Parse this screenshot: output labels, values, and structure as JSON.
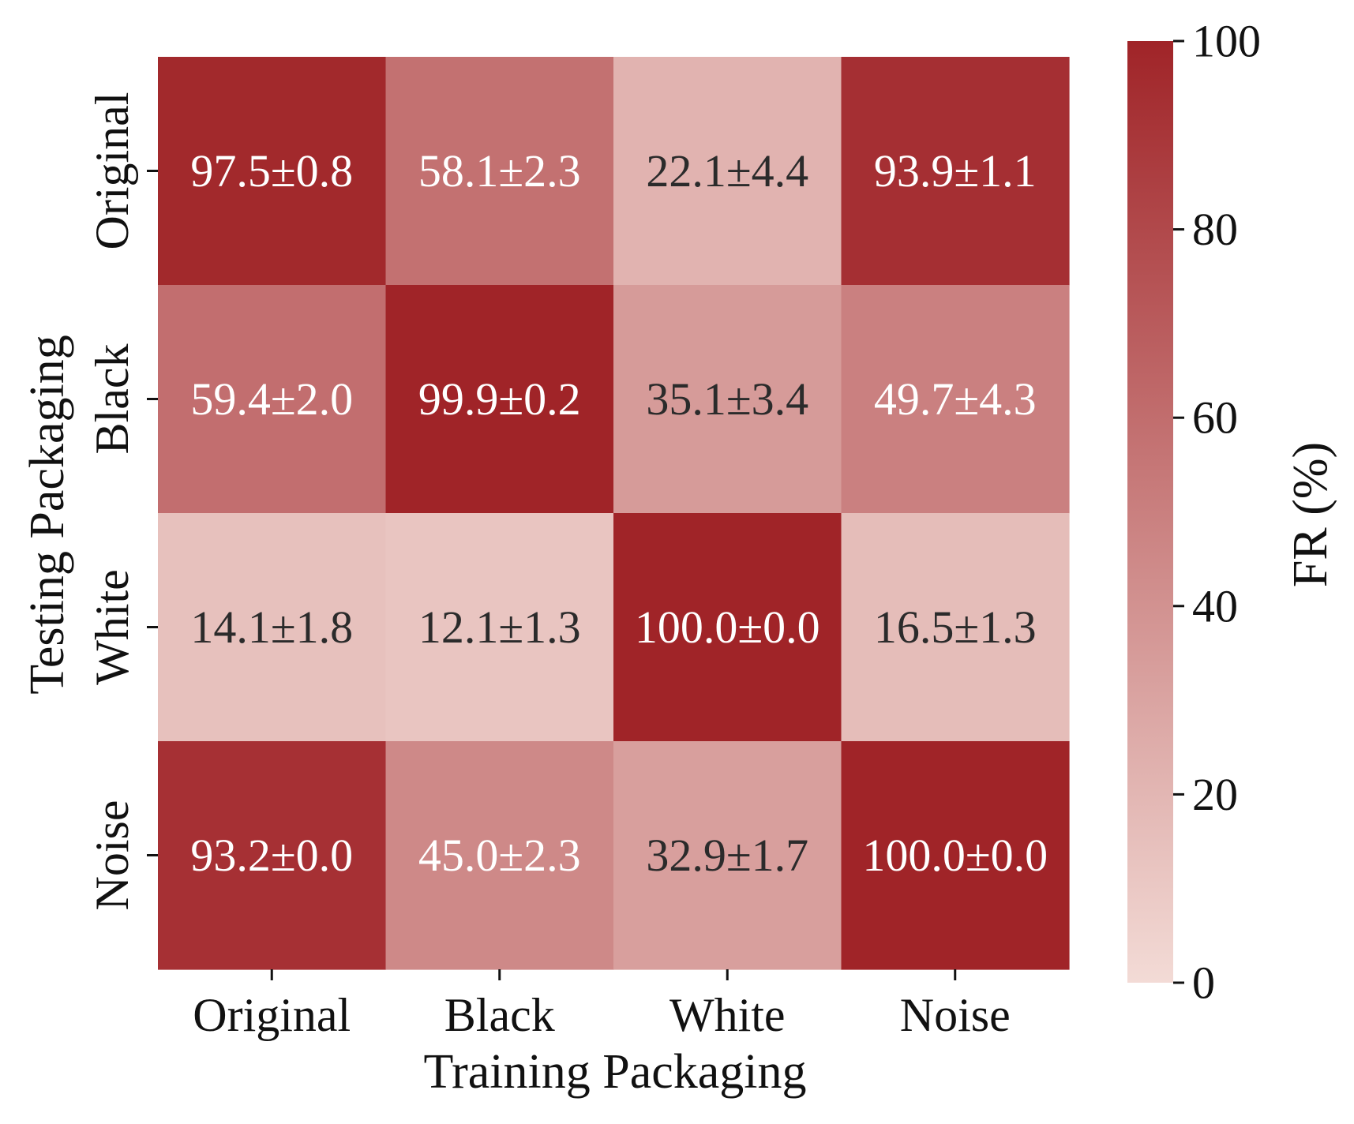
{
  "chart_data": {
    "type": "heatmap",
    "title": "",
    "xlabel": "Training Packaging",
    "ylabel": "Testing Packaging",
    "x_categories": [
      "Original",
      "Black",
      "White",
      "Noise"
    ],
    "y_categories": [
      "Original",
      "Black",
      "White",
      "Noise"
    ],
    "values": [
      [
        97.5,
        58.1,
        22.1,
        93.9
      ],
      [
        59.4,
        99.9,
        35.1,
        49.7
      ],
      [
        14.1,
        12.1,
        100.0,
        16.5
      ],
      [
        93.2,
        45.0,
        32.9,
        100.0
      ]
    ],
    "cell_labels": [
      [
        "97.5±0.8",
        "58.1±2.3",
        "22.1±4.4",
        "93.9±1.1"
      ],
      [
        "59.4±2.0",
        "99.9±0.2",
        "35.1±3.4",
        "49.7±4.3"
      ],
      [
        "14.1±1.8",
        "12.1±1.3",
        "100.0±0.0",
        "16.5±1.3"
      ],
      [
        "93.2±0.0",
        "45.0±2.3",
        "32.9±1.7",
        "100.0±0.0"
      ]
    ],
    "colorbar": {
      "label": "FR (%)",
      "range": [
        0,
        100
      ],
      "ticks": [
        "0",
        "20",
        "40",
        "60",
        "80",
        "100"
      ],
      "color_low": "#f3dbd6",
      "color_high": "#a02428"
    },
    "text_color_dark": "#2b2b2b",
    "text_color_light": "#ffffff"
  }
}
